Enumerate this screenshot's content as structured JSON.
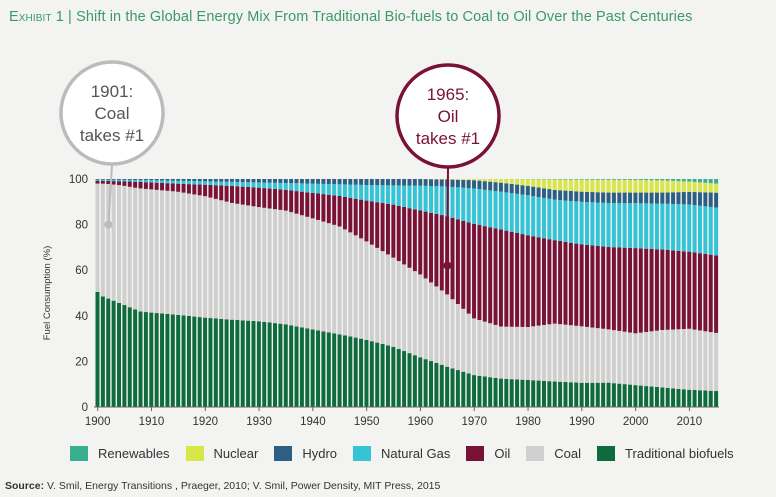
{
  "title": {
    "exhibit": "Exhibit 1",
    "separator": "|",
    "text": "Shift in the Global Energy Mix From Traditional Bio-fuels to Coal to Oil Over the Past Centuries"
  },
  "annotations": [
    {
      "lines": [
        "1901:",
        "Coal",
        "takes #1"
      ],
      "year": 1902,
      "value": 80,
      "color": "#bbbbbb",
      "text_color": "#555555"
    },
    {
      "lines": [
        "1965:",
        "Oil",
        "takes #1"
      ],
      "year": 1965,
      "value": 62,
      "color": "#7a1238",
      "text_color": "#7a1238"
    }
  ],
  "source": {
    "label": "Source:",
    "text": "V. Smil, Energy Transitions , Praeger, 2010; V. Smil, Power Density, MIT Press, 2015"
  },
  "chart_data": {
    "type": "bar",
    "stacked": true,
    "x_range": [
      1900,
      2015
    ],
    "ylabel": "Fuel Consumption (%)",
    "ylim": [
      0,
      100
    ],
    "yticks": [
      0,
      20,
      40,
      60,
      80,
      100
    ],
    "xticks": [
      1900,
      1910,
      1920,
      1930,
      1940,
      1950,
      1960,
      1970,
      1980,
      1990,
      2000,
      2010
    ],
    "grid": false,
    "legend_position": "bottom",
    "series_order": [
      "Traditional biofuels",
      "Coal",
      "Oil",
      "Natural Gas",
      "Hydro",
      "Nuclear",
      "Renewables"
    ],
    "legend_order": [
      "Renewables",
      "Nuclear",
      "Hydro",
      "Natural Gas",
      "Oil",
      "Coal",
      "Traditional biofuels"
    ],
    "colors": {
      "Traditional biofuels": "#0e6b3b",
      "Coal": "#cfcfcf",
      "Oil": "#7a1238",
      "Natural Gas": "#35c3d6",
      "Hydro": "#2d5f84",
      "Nuclear": "#d9e64a",
      "Renewables": "#3aaf8f"
    },
    "series": [
      {
        "name": "Traditional biofuels",
        "points": [
          [
            1900,
            50.5
          ],
          [
            1901,
            48.5
          ],
          [
            1902,
            47.5
          ],
          [
            1903,
            46.5
          ],
          [
            1904,
            45.5
          ],
          [
            1905,
            44.5
          ],
          [
            1906,
            43.5
          ],
          [
            1907,
            42.5
          ],
          [
            1908,
            41.5
          ],
          [
            1910,
            41
          ],
          [
            1915,
            40
          ],
          [
            1920,
            39
          ],
          [
            1925,
            38.5
          ],
          [
            1930,
            37.5
          ],
          [
            1935,
            36
          ],
          [
            1940,
            33.5
          ],
          [
            1945,
            31
          ],
          [
            1950,
            28
          ],
          [
            1955,
            25
          ],
          [
            1960,
            21
          ],
          [
            1965,
            17
          ],
          [
            1970,
            13.5
          ],
          [
            1975,
            12
          ],
          [
            1980,
            11.5
          ],
          [
            1985,
            11
          ],
          [
            1990,
            10.5
          ],
          [
            1995,
            10.5
          ],
          [
            2000,
            9.5
          ],
          [
            2005,
            8.5
          ],
          [
            2010,
            7.5
          ],
          [
            2015,
            7
          ]
        ]
      },
      {
        "name": "Coal",
        "points": [
          [
            1900,
            47.5
          ],
          [
            1901,
            49.5
          ],
          [
            1902,
            50.2
          ],
          [
            1903,
            50.8
          ],
          [
            1904,
            51.5
          ],
          [
            1905,
            52
          ],
          [
            1906,
            52.5
          ],
          [
            1907,
            53
          ],
          [
            1908,
            53.5
          ],
          [
            1910,
            53.5
          ],
          [
            1915,
            53.5
          ],
          [
            1920,
            53
          ],
          [
            1925,
            51.5
          ],
          [
            1930,
            50
          ],
          [
            1935,
            49.5
          ],
          [
            1940,
            48
          ],
          [
            1945,
            46
          ],
          [
            1950,
            41
          ],
          [
            1955,
            37
          ],
          [
            1960,
            35
          ],
          [
            1965,
            30.5
          ],
          [
            1970,
            24
          ],
          [
            1975,
            22
          ],
          [
            1980,
            22.5
          ],
          [
            1985,
            25
          ],
          [
            1990,
            24.5
          ],
          [
            1995,
            23
          ],
          [
            2000,
            22.5
          ],
          [
            2005,
            25
          ],
          [
            2010,
            26.5
          ],
          [
            2015,
            25.5
          ]
        ]
      },
      {
        "name": "Oil",
        "points": [
          [
            1900,
            1.2
          ],
          [
            1901,
            1.2
          ],
          [
            1902,
            1.3
          ],
          [
            1903,
            1.5
          ],
          [
            1904,
            1.7
          ],
          [
            1905,
            2
          ],
          [
            1906,
            2.3
          ],
          [
            1907,
            2.6
          ],
          [
            1908,
            2.8
          ],
          [
            1910,
            3
          ],
          [
            1915,
            3.5
          ],
          [
            1920,
            5
          ],
          [
            1925,
            7.5
          ],
          [
            1930,
            8.5
          ],
          [
            1935,
            9
          ],
          [
            1940,
            11
          ],
          [
            1945,
            13
          ],
          [
            1950,
            17
          ],
          [
            1955,
            22
          ],
          [
            1960,
            27
          ],
          [
            1965,
            33
          ],
          [
            1970,
            40
          ],
          [
            1975,
            41
          ],
          [
            1980,
            39
          ],
          [
            1985,
            36
          ],
          [
            1990,
            35.5
          ],
          [
            1995,
            35.5
          ],
          [
            2000,
            37
          ],
          [
            2005,
            35
          ],
          [
            2010,
            33.5
          ],
          [
            2015,
            34
          ]
        ]
      },
      {
        "name": "Natural Gas",
        "points": [
          [
            1900,
            0.5
          ],
          [
            1905,
            0.6
          ],
          [
            1910,
            1
          ],
          [
            1915,
            1.3
          ],
          [
            1920,
            1.5
          ],
          [
            1925,
            1.8
          ],
          [
            1930,
            2.3
          ],
          [
            1935,
            3
          ],
          [
            1940,
            4
          ],
          [
            1945,
            5
          ],
          [
            1950,
            6.5
          ],
          [
            1955,
            8
          ],
          [
            1960,
            10.5
          ],
          [
            1965,
            12.5
          ],
          [
            1970,
            15
          ],
          [
            1975,
            16
          ],
          [
            1980,
            17
          ],
          [
            1985,
            17.5
          ],
          [
            1990,
            18.5
          ],
          [
            1995,
            19
          ],
          [
            2000,
            19.5
          ],
          [
            2005,
            20
          ],
          [
            2010,
            20.5
          ],
          [
            2015,
            21
          ]
        ]
      },
      {
        "name": "Hydro",
        "points": [
          [
            1900,
            0.3
          ],
          [
            1910,
            0.5
          ],
          [
            1920,
            1
          ],
          [
            1930,
            1.5
          ],
          [
            1940,
            2
          ],
          [
            1950,
            2.5
          ],
          [
            1960,
            2.8
          ],
          [
            1965,
            3
          ],
          [
            1970,
            3.5
          ],
          [
            1975,
            3.8
          ],
          [
            1980,
            4
          ],
          [
            1985,
            4.2
          ],
          [
            1990,
            4.4
          ],
          [
            1995,
            4.5
          ],
          [
            2000,
            4.6
          ],
          [
            2005,
            4.8
          ],
          [
            2010,
            5.5
          ],
          [
            2015,
            6.5
          ]
        ]
      },
      {
        "name": "Nuclear",
        "points": [
          [
            1900,
            0
          ],
          [
            1955,
            0
          ],
          [
            1960,
            0
          ],
          [
            1965,
            0.2
          ],
          [
            1970,
            0.5
          ],
          [
            1975,
            1.5
          ],
          [
            1980,
            2.8
          ],
          [
            1985,
            4.5
          ],
          [
            1990,
            5.2
          ],
          [
            1995,
            5.5
          ],
          [
            2000,
            5.5
          ],
          [
            2005,
            5.3
          ],
          [
            2010,
            4.5
          ],
          [
            2015,
            4
          ]
        ]
      },
      {
        "name": "Renewables",
        "points": [
          [
            1900,
            0
          ],
          [
            1970,
            0
          ],
          [
            1980,
            0.1
          ],
          [
            1990,
            0.3
          ],
          [
            2000,
            0.4
          ],
          [
            2005,
            0.6
          ],
          [
            2010,
            1.1
          ],
          [
            2015,
            2
          ]
        ]
      }
    ]
  }
}
